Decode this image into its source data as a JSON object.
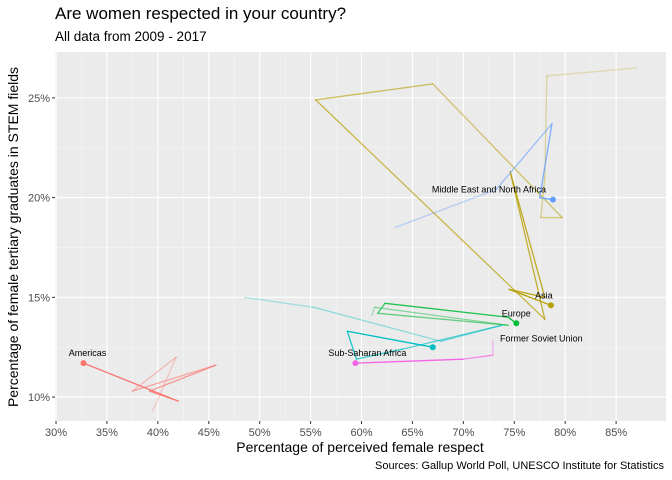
{
  "chart_data": {
    "type": "line",
    "title": "Are women respected in your country?",
    "subtitle": "All data from 2009 - 2017",
    "xlabel": "Percentage of perceived female respect",
    "ylabel": "Percentage of female tertiary graduates in STEM fields",
    "caption": "Sources: Gallup World Poll, UNESCO Institute for Statistics",
    "xlim": [
      29.9,
      89.9
    ],
    "ylim": [
      8.8,
      27.3
    ],
    "x_ticks": [
      "30%",
      "35%",
      "40%",
      "45%",
      "50%",
      "55%",
      "60%",
      "65%",
      "70%",
      "75%",
      "80%",
      "85%"
    ],
    "x_tick_values": [
      30,
      35,
      40,
      45,
      50,
      55,
      60,
      65,
      70,
      75,
      80,
      85
    ],
    "y_ticks": [
      "10%",
      "15%",
      "20%",
      "25%"
    ],
    "y_tick_values": [
      10,
      15,
      20,
      25
    ],
    "grid": true,
    "series": [
      {
        "name": "Americas",
        "color": "#F8766D",
        "x": [
          39.5,
          41.8,
          37.5,
          45.7,
          39.2,
          42.0,
          32.7
        ],
        "y": [
          9.3,
          12.0,
          10.3,
          11.6,
          10.3,
          9.8,
          11.7
        ]
      },
      {
        "name": "Asia",
        "color": "#B79F00",
        "x": [
          87.0,
          78.2,
          78.0,
          77.6,
          79.7,
          67.0,
          55.5,
          78.0,
          74.6,
          78.0,
          74.5,
          78.6
        ],
        "y": [
          26.5,
          26.1,
          21.0,
          19.0,
          19.0,
          25.7,
          24.9,
          13.9,
          21.3,
          15.0,
          15.4,
          14.6
        ]
      },
      {
        "name": "Europe",
        "color": "#00BA38",
        "x": [
          61.0,
          61.3,
          74.4,
          61.6,
          62.3,
          74.4,
          75.2
        ],
        "y": [
          14.1,
          14.5,
          13.6,
          14.2,
          14.7,
          14.0,
          13.7
        ]
      },
      {
        "name": "Former Soviet Union",
        "color": "#00BFC4",
        "x": [
          48.5,
          55.3,
          67.8,
          73.8,
          64.0,
          59.5,
          58.6,
          67.0
        ],
        "y": [
          15.0,
          14.5,
          12.8,
          13.6,
          12.4,
          11.9,
          13.3,
          12.5
        ]
      },
      {
        "name": "Middle East and North Africa",
        "color": "#619CFF",
        "x": [
          63.3,
          73.2,
          78.7,
          77.5,
          78.8
        ],
        "y": [
          18.5,
          20.4,
          23.7,
          20.0,
          19.9
        ]
      },
      {
        "name": "Sub-Saharan Africa",
        "color": "#F564E3",
        "x": [
          72.9,
          72.9,
          70.0,
          59.4
        ],
        "y": [
          12.8,
          12.1,
          11.9,
          11.7
        ]
      }
    ],
    "annotations": [
      {
        "text": "Americas",
        "x": 32.7,
        "y": 11.7
      },
      {
        "text": "Asia",
        "x": 78.6,
        "y": 14.6
      },
      {
        "text": "Europe",
        "x": 75.2,
        "y": 13.7
      },
      {
        "text": "Former Soviet Union",
        "x": 73.8,
        "y": 13.6
      },
      {
        "text": "Middle East and North Africa",
        "x": 78.8,
        "y": 19.9
      },
      {
        "text": "Sub-Saharan Africa",
        "x": 59.4,
        "y": 11.7
      }
    ]
  }
}
